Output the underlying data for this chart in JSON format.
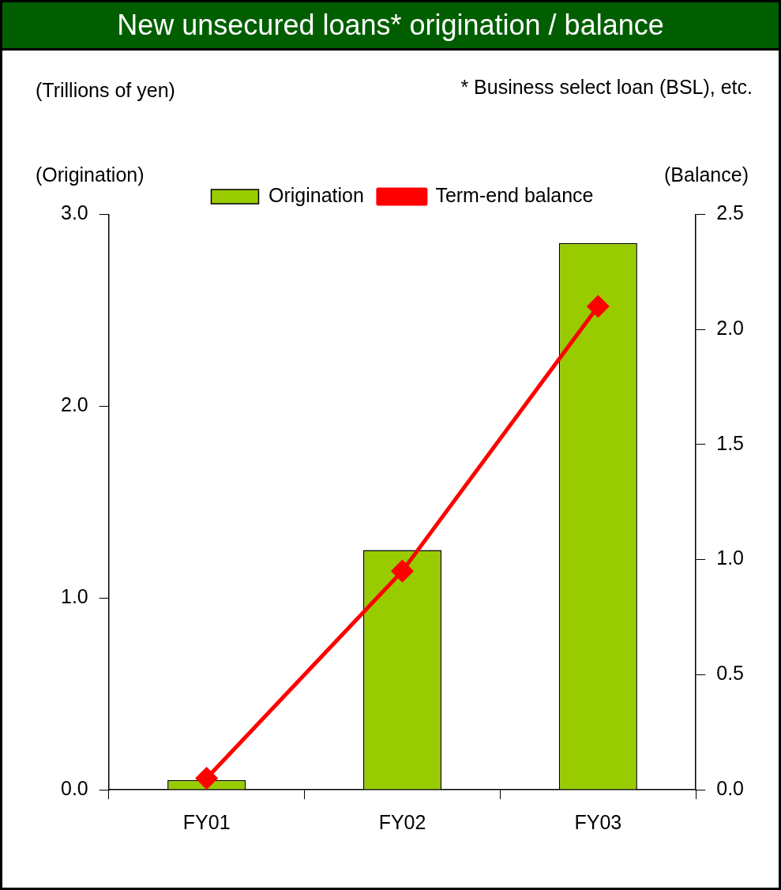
{
  "chart_data": {
    "type": "bar",
    "title": "New unsecured loans* origination / balance",
    "annotations": [
      "(Trillions of yen)",
      "* Business select loan (BSL), etc."
    ],
    "ylabel": "(Origination)",
    "y2label": "(Balance)",
    "categories": [
      "FY01",
      "FY02",
      "FY03"
    ],
    "series": [
      {
        "name": "Origination",
        "color": "#99cc00",
        "values": [
          0.05,
          1.25,
          2.85
        ]
      },
      {
        "name": "Term-end balance",
        "type": "line",
        "axis": "y2",
        "color": "#ff0000",
        "marker": "diamond",
        "values": [
          0.05,
          0.95,
          2.1
        ]
      }
    ],
    "ylim": [
      0,
      3
    ],
    "yticks": [
      {
        "value": 0,
        "label": "0.0"
      },
      {
        "value": 1,
        "label": "1.0"
      },
      {
        "value": 2,
        "label": "2.0"
      },
      {
        "value": 3,
        "label": "3.0"
      }
    ],
    "y2lim": [
      0,
      2.5
    ],
    "y2ticks": [
      {
        "value": 0,
        "label": "0.0"
      },
      {
        "value": 0.5,
        "label": "0.5"
      },
      {
        "value": 1,
        "label": "1.0"
      },
      {
        "value": 1.5,
        "label": "1.5"
      },
      {
        "value": 2,
        "label": "2.0"
      },
      {
        "value": 2.5,
        "label": "2.5"
      }
    ],
    "legend": "top",
    "grid": false
  }
}
